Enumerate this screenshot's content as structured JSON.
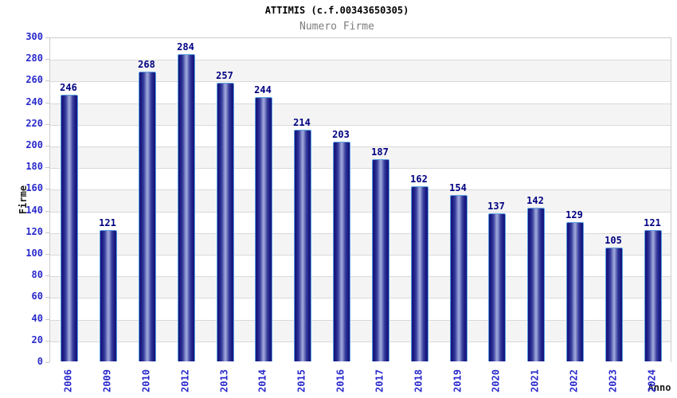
{
  "chart_data": {
    "type": "bar",
    "title": "ATTIMIS (c.f.00343650305)",
    "subtitle": "Numero Firme",
    "xlabel": "Anno",
    "ylabel": "Firme",
    "categories": [
      "2006",
      "2009",
      "2010",
      "2012",
      "2013",
      "2014",
      "2015",
      "2016",
      "2017",
      "2018",
      "2019",
      "2020",
      "2021",
      "2022",
      "2023",
      "2024"
    ],
    "values": [
      246,
      121,
      268,
      284,
      257,
      244,
      214,
      203,
      187,
      162,
      154,
      137,
      142,
      129,
      105,
      121
    ],
    "ylim": [
      0,
      300
    ],
    "ytick_step": 20,
    "grid": "horizontal-bands-alternating",
    "legend": "none",
    "colors": {
      "bar_edge": "#14147c",
      "bar_center": "#9aa2d8",
      "bar_border": "#5a9fe0",
      "tick_text": "#2929cc",
      "value_label": "#000082",
      "band_gray": "#f4f4f4",
      "band_white": "#ffffff",
      "gridline": "#d9d9d9",
      "plot_border": "#cccccc",
      "title": "#000000",
      "subtitle": "#7d7d7d",
      "axis_title": "#1a1a1a"
    }
  }
}
